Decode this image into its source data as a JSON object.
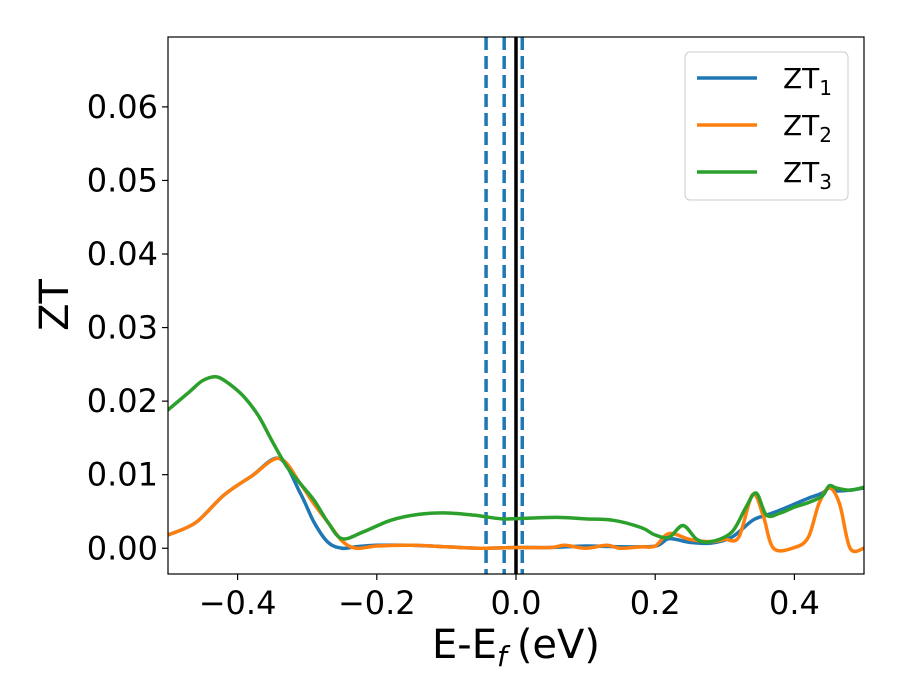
{
  "chart_data": {
    "type": "line",
    "xlabel": "E-E",
    "xlabel_sub": "f",
    "xlabel_unit": "(eV)",
    "ylabel": "ZT",
    "xlim": [
      -0.5,
      0.5
    ],
    "ylim": [
      -0.0035,
      0.0695
    ],
    "x_ticks": [
      -0.4,
      -0.2,
      0.0,
      0.2,
      0.4
    ],
    "x_tick_labels": [
      "−0.4",
      "−0.2",
      "0.0",
      "0.2",
      "0.4"
    ],
    "y_ticks": [
      0.0,
      0.01,
      0.02,
      0.03,
      0.04,
      0.05,
      0.06
    ],
    "y_tick_labels": [
      "0.00",
      "0.01",
      "0.02",
      "0.03",
      "0.04",
      "0.05",
      "0.06"
    ],
    "grid": false,
    "legend_position": "top-right",
    "series": [
      {
        "name": "ZT",
        "name_sub": "1",
        "color": "#1f77b4",
        "x": [
          -0.5,
          -0.46,
          -0.42,
          -0.38,
          -0.34,
          -0.31,
          -0.29,
          -0.27,
          -0.25,
          -0.23,
          -0.2,
          -0.15,
          -0.1,
          -0.05,
          0.0,
          0.05,
          0.1,
          0.15,
          0.2,
          0.22,
          0.25,
          0.28,
          0.31,
          0.34,
          0.36,
          0.38,
          0.4,
          0.42,
          0.44,
          0.45,
          0.46,
          0.48,
          0.5
        ],
        "y": [
          0.0018,
          0.0035,
          0.0072,
          0.0098,
          0.0122,
          0.0075,
          0.0035,
          0.0008,
          0.0,
          0.0002,
          0.0004,
          0.0004,
          0.0002,
          0.0,
          0.0001,
          0.0001,
          0.0003,
          0.0002,
          0.0003,
          0.0013,
          0.0008,
          0.0007,
          0.0015,
          0.0038,
          0.0045,
          0.0052,
          0.006,
          0.0068,
          0.0075,
          0.0082,
          0.0078,
          0.0079,
          0.0082
        ]
      },
      {
        "name": "ZT",
        "name_sub": "2",
        "color": "#ff7f0e",
        "x": [
          -0.5,
          -0.46,
          -0.42,
          -0.38,
          -0.34,
          -0.31,
          -0.29,
          -0.27,
          -0.25,
          -0.23,
          -0.2,
          -0.15,
          -0.1,
          -0.05,
          0.0,
          0.05,
          0.07,
          0.1,
          0.13,
          0.15,
          0.18,
          0.2,
          0.22,
          0.25,
          0.28,
          0.3,
          0.32,
          0.34,
          0.355,
          0.37,
          0.4,
          0.42,
          0.435,
          0.45,
          0.465,
          0.48,
          0.5
        ],
        "y": [
          0.0018,
          0.0035,
          0.0072,
          0.0098,
          0.0122,
          0.0088,
          0.006,
          0.0035,
          0.001,
          0.0,
          0.0003,
          0.0004,
          0.0002,
          0.0,
          0.0001,
          0.0001,
          0.0004,
          0.0,
          0.0004,
          0.0,
          0.0002,
          0.0003,
          0.002,
          0.0012,
          0.0009,
          0.0012,
          0.0015,
          0.0073,
          0.0045,
          0.0,
          0.0001,
          0.0015,
          0.006,
          0.0082,
          0.006,
          0.0,
          0.0
        ]
      },
      {
        "name": "ZT",
        "name_sub": "3",
        "color": "#2ca02c",
        "x": [
          -0.5,
          -0.47,
          -0.45,
          -0.43,
          -0.41,
          -0.39,
          -0.37,
          -0.35,
          -0.33,
          -0.31,
          -0.29,
          -0.27,
          -0.25,
          -0.22,
          -0.18,
          -0.14,
          -0.1,
          -0.06,
          -0.02,
          0.02,
          0.06,
          0.1,
          0.14,
          0.18,
          0.2,
          0.22,
          0.24,
          0.26,
          0.28,
          0.31,
          0.33,
          0.345,
          0.36,
          0.38,
          0.4,
          0.42,
          0.44,
          0.45,
          0.46,
          0.48,
          0.5
        ],
        "y": [
          0.0188,
          0.0212,
          0.0228,
          0.0233,
          0.0222,
          0.0205,
          0.018,
          0.0145,
          0.0112,
          0.0088,
          0.0065,
          0.0035,
          0.0013,
          0.0022,
          0.0038,
          0.0046,
          0.0048,
          0.0045,
          0.004,
          0.0041,
          0.0042,
          0.004,
          0.0038,
          0.0028,
          0.0018,
          0.0015,
          0.0031,
          0.0012,
          0.0009,
          0.0022,
          0.0055,
          0.0075,
          0.0045,
          0.0048,
          0.0056,
          0.0062,
          0.0071,
          0.0085,
          0.0082,
          0.0079,
          0.0083
        ]
      }
    ],
    "vlines": [
      {
        "x": -0.043,
        "style": "dashed",
        "color": "#1f77b4"
      },
      {
        "x": -0.017,
        "style": "dashed",
        "color": "#1f77b4"
      },
      {
        "x": 0.0,
        "style": "solid",
        "color": "#000000"
      },
      {
        "x": 0.009,
        "style": "dashed",
        "color": "#1f77b4"
      }
    ]
  }
}
